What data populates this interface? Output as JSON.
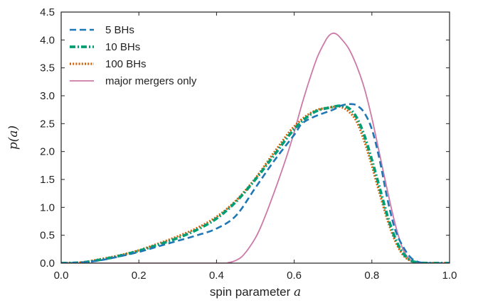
{
  "chart_data": {
    "type": "line",
    "xlabel": "spin parameter",
    "xlabel_var": "a",
    "ylabel": "p(a)",
    "xlim": [
      0.0,
      1.0
    ],
    "ylim": [
      0.0,
      4.5
    ],
    "xticks": [
      "0.0",
      "0.2",
      "0.4",
      "0.6",
      "0.8",
      "1.0"
    ],
    "yticks": [
      "0.0",
      "0.5",
      "1.0",
      "1.5",
      "2.0",
      "2.5",
      "3.0",
      "3.5",
      "4.0",
      "4.5"
    ],
    "grid": false,
    "legend_position": "top-left",
    "series": [
      {
        "name": "5 BHs",
        "color": "#1f77b4",
        "style": "dashed",
        "x": [
          0.0,
          0.05,
          0.1,
          0.15,
          0.2,
          0.25,
          0.3,
          0.35,
          0.4,
          0.45,
          0.5,
          0.55,
          0.6,
          0.62,
          0.65,
          0.7,
          0.72,
          0.74,
          0.76,
          0.78,
          0.8,
          0.82,
          0.84,
          0.86,
          0.88,
          0.9,
          0.92,
          0.95,
          1.0
        ],
        "y": [
          0.0,
          0.01,
          0.05,
          0.12,
          0.2,
          0.3,
          0.4,
          0.5,
          0.62,
          0.85,
          1.35,
          1.85,
          2.3,
          2.5,
          2.62,
          2.75,
          2.82,
          2.85,
          2.83,
          2.7,
          2.4,
          1.85,
          1.15,
          0.6,
          0.3,
          0.1,
          0.02,
          0.0,
          0.0
        ]
      },
      {
        "name": "10 BHs",
        "color": "#009e73",
        "style": "dashdot",
        "x": [
          0.0,
          0.05,
          0.1,
          0.15,
          0.2,
          0.25,
          0.3,
          0.35,
          0.4,
          0.45,
          0.5,
          0.55,
          0.6,
          0.65,
          0.7,
          0.72,
          0.74,
          0.76,
          0.78,
          0.8,
          0.82,
          0.84,
          0.86,
          0.88,
          0.9,
          0.92,
          0.95,
          1.0
        ],
        "y": [
          0.0,
          0.01,
          0.06,
          0.13,
          0.22,
          0.33,
          0.45,
          0.6,
          0.8,
          1.1,
          1.5,
          1.95,
          2.4,
          2.7,
          2.8,
          2.82,
          2.78,
          2.62,
          2.3,
          1.85,
          1.35,
          0.85,
          0.45,
          0.18,
          0.05,
          0.01,
          0.0,
          0.0
        ]
      },
      {
        "name": "100 BHs",
        "color": "#d55e00",
        "style": "dotted",
        "x": [
          0.0,
          0.05,
          0.1,
          0.15,
          0.2,
          0.25,
          0.3,
          0.35,
          0.4,
          0.45,
          0.5,
          0.55,
          0.6,
          0.65,
          0.7,
          0.72,
          0.74,
          0.76,
          0.78,
          0.8,
          0.82,
          0.84,
          0.86,
          0.88,
          0.9,
          0.92,
          0.95,
          1.0
        ],
        "y": [
          0.0,
          0.01,
          0.07,
          0.14,
          0.23,
          0.35,
          0.48,
          0.63,
          0.83,
          1.12,
          1.52,
          2.0,
          2.45,
          2.72,
          2.8,
          2.8,
          2.72,
          2.55,
          2.2,
          1.75,
          1.25,
          0.78,
          0.4,
          0.15,
          0.04,
          0.01,
          0.0,
          0.0
        ]
      },
      {
        "name": "major mergers only",
        "color": "#cc79a7",
        "style": "solid",
        "x": [
          0.0,
          0.4,
          0.43,
          0.45,
          0.47,
          0.5,
          0.52,
          0.55,
          0.58,
          0.6,
          0.62,
          0.64,
          0.66,
          0.68,
          0.69,
          0.7,
          0.71,
          0.72,
          0.74,
          0.76,
          0.78,
          0.8,
          0.82,
          0.84,
          0.86,
          0.88,
          0.9,
          0.92,
          0.95,
          1.0
        ],
        "y": [
          0.0,
          0.0,
          0.01,
          0.05,
          0.15,
          0.45,
          0.75,
          1.3,
          1.9,
          2.35,
          2.85,
          3.3,
          3.7,
          3.98,
          4.08,
          4.12,
          4.1,
          4.03,
          3.85,
          3.55,
          3.15,
          2.6,
          1.95,
          1.3,
          0.7,
          0.25,
          0.05,
          0.0,
          0.0,
          0.0
        ]
      }
    ]
  }
}
